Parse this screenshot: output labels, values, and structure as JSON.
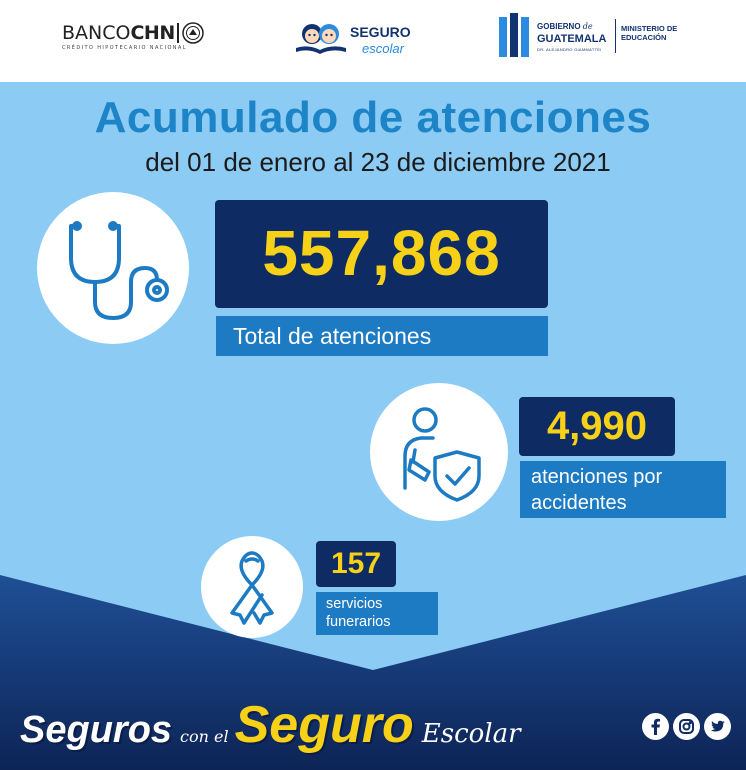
{
  "header": {
    "banco": {
      "name_left": "BANCO",
      "name_right": "CHN",
      "tagline": "CRÉDITO HIPOTECARIO NACIONAL"
    },
    "seguro_logo": {
      "main": "SEGURO",
      "sub": "escolar"
    },
    "gobierno": {
      "line1_a": "GOBIERNO",
      "line1_b": "de",
      "line2": "GUATEMALA",
      "line3": "DR. ALEJANDRO GIAMMATTEI",
      "ministry_line1": "MINISTERIO DE",
      "ministry_line2": "EDUCACIÓN"
    }
  },
  "title": "Acumulado de atenciones",
  "subtitle": "del 01 de enero al 23 de diciembre 2021",
  "stats": {
    "total": {
      "value": "557,868",
      "label": "Total de atenciones",
      "icon": "stethoscope-icon"
    },
    "accidents": {
      "value": "4,990",
      "label_line1": "atenciones por",
      "label_line2": "accidentes",
      "icon": "injured-person-shield-icon"
    },
    "funeral": {
      "value": "157",
      "label_line1": "servicios",
      "label_line2": "funerarios",
      "icon": "ribbon-icon"
    }
  },
  "slogan": {
    "part1": "Seguros",
    "part2": "con el",
    "part3": "Seguro",
    "part4": "Escolar"
  },
  "social": [
    "facebook-icon",
    "instagram-icon",
    "twitter-icon"
  ],
  "colors": {
    "background": "#8ccbf3",
    "title_blue": "#1d84c7",
    "navy": "#0e2b63",
    "label_blue": "#1d7bc4",
    "yellow": "#f7d117"
  }
}
